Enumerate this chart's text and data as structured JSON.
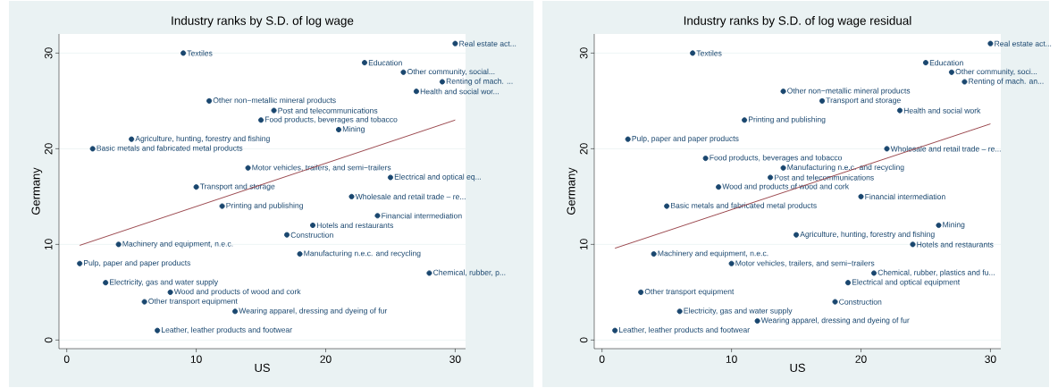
{
  "chart_data": [
    {
      "type": "scatter",
      "title": "Industry ranks by S.D. of log wage",
      "xlabel": "US",
      "ylabel": "Germany",
      "xlim": [
        -0.6,
        30.8
      ],
      "ylim": [
        -0.9,
        32
      ],
      "xticks": [
        0,
        10,
        20,
        30
      ],
      "yticks": [
        0,
        10,
        20,
        30
      ],
      "grid": "y",
      "series": [
        {
          "type": "scatter",
          "color": "#1a476f",
          "marker": "circle",
          "x": [
            30,
            9,
            23,
            26,
            29,
            27,
            11,
            16,
            15,
            21,
            5,
            2,
            14,
            25,
            10,
            22,
            12,
            24,
            19,
            17,
            4,
            18,
            1,
            28,
            3,
            8,
            6,
            13,
            7
          ],
          "values": [
            31,
            30,
            29,
            28,
            27,
            26,
            25,
            24,
            23,
            22,
            21,
            20,
            18,
            17,
            16,
            15,
            14,
            13,
            12,
            11,
            10,
            9,
            8,
            7,
            6,
            5,
            4,
            3,
            1
          ],
          "value_labels": [
            "Real estate act...",
            "Textiles",
            "Education",
            "Other community, social...",
            "Renting of mach. ...",
            "Health and social wor...",
            "Other non−metallic mineral products",
            "Post and telecommunications",
            "Food products, beverages and tobacco",
            "Mining",
            "Agriculture, hunting, forestry and fishing",
            "Basic metals and fabricated metal products",
            "Motor vehicles, trailers, and semi−trailers",
            "Electrical and optical eq...",
            "Transport and storage",
            "Wholesale and retail trade – re...",
            "Printing and publishing",
            "Financial intermediation",
            "Hotels and restaurants",
            "Construction",
            "Machinery and equipment, n.e.c.",
            "Manufacturing n.e.c. and recycling",
            "Pulp, paper and paper products",
            "Chemical, rubber, p...",
            "Electricity, gas and water supply",
            "Wood and products of wood and cork",
            "Other transport equipment",
            "Wearing apparel, dressing and dyeing of fur",
            "Leather, leather products and footwear"
          ]
        },
        {
          "type": "line",
          "color": "#90353b",
          "marker": "none",
          "x": [
            1,
            30
          ],
          "values": [
            9.9,
            23
          ]
        }
      ]
    },
    {
      "type": "scatter",
      "title": "Industry ranks by S.D. of log wage residual",
      "xlabel": "US",
      "ylabel": "Germany",
      "xlim": [
        -0.6,
        30.8
      ],
      "ylim": [
        -0.9,
        32
      ],
      "xticks": [
        0,
        10,
        20,
        30
      ],
      "yticks": [
        0,
        10,
        20,
        30
      ],
      "grid": "y",
      "series": [
        {
          "type": "scatter",
          "color": "#1a476f",
          "marker": "circle",
          "x": [
            30,
            7,
            25,
            27,
            28,
            14,
            17,
            23,
            11,
            2,
            22,
            8,
            14,
            13,
            9,
            20,
            5,
            26,
            15,
            24,
            4,
            10,
            21,
            19,
            3,
            18,
            6,
            12,
            1
          ],
          "values": [
            31,
            30,
            29,
            28,
            27,
            26,
            25,
            24,
            23,
            21,
            20,
            19,
            18,
            17,
            16,
            15,
            14,
            12,
            11,
            10,
            9,
            8,
            7,
            6,
            5,
            4,
            3,
            2,
            1
          ],
          "value_labels": [
            "Real estate act...",
            "Textiles",
            "Education",
            "Other community, soci...",
            "Renting of mach. an...",
            "Other non−metallic mineral products",
            "Transport and storage",
            "Health and social work",
            "Printing and publishing",
            "Pulp, paper and paper products",
            "Wholesale and retail trade – re...",
            "Food products, beverages and tobacco",
            "Manufacturing n.e.c. and recycling",
            "Post and telecommunications",
            "Wood and products of wood and cork",
            "Financial intermediation",
            "Basic metals and fabricated metal products",
            "Mining",
            "Agriculture, hunting, forestry and fishing",
            "Hotels and restaurants",
            "Machinery and equipment, n.e.c.",
            "Motor vehicles, trailers, and semi−trailers",
            "Chemical, rubber, plastics and fu...",
            "Electrical and optical equipment",
            "Other transport equipment",
            "Construction",
            "Electricity, gas and water supply",
            "Wearing apparel, dressing and dyeing of fur",
            "Leather, leather products and footwear"
          ]
        },
        {
          "type": "line",
          "color": "#90353b",
          "marker": "none",
          "x": [
            1,
            30
          ],
          "values": [
            9.6,
            22.6
          ]
        }
      ]
    }
  ]
}
